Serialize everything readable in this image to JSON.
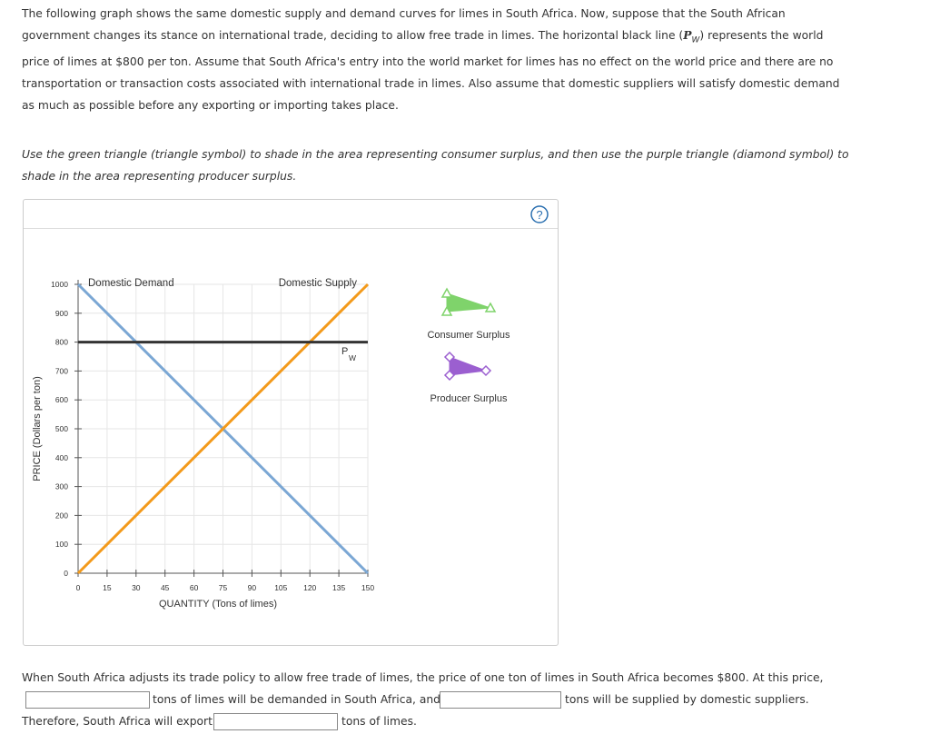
{
  "question": {
    "intro": [
      "The following graph shows the same domestic supply and demand curves for limes in South Africa. Now, suppose that the South African government changes its stance on international trade, deciding to allow free trade in limes. The horizontal black line (",
      "P",
      "W",
      ") represents the world price of limes at $800 per ton. Assume that South Africa's entry into the world market for limes has no effect on the world price and there are no transportation or transaction costs associated with international trade in limes. Also assume that domestic suppliers will satisfy domestic demand as much as possible before any exporting or importing takes place."
    ],
    "instruction": "Use the green triangle (triangle symbol) to shade in the area representing consumer surplus, and then use the purple triangle (diamond symbol) to shade in the area representing producer surplus."
  },
  "help": "?",
  "chart_data": {
    "type": "line",
    "x": [
      0,
      150
    ],
    "series": [
      {
        "name": "Domestic Demand",
        "color": "#7ba7d4",
        "values": [
          1000,
          0
        ]
      },
      {
        "name": "Domestic Supply",
        "color": "#f39a1b",
        "values": [
          0,
          1000
        ]
      },
      {
        "name": "P",
        "name_sub": "W",
        "color": "#333333",
        "values": [
          800,
          800
        ]
      }
    ],
    "xlim": [
      0,
      150
    ],
    "xticks": [
      0,
      15,
      30,
      45,
      60,
      75,
      90,
      105,
      120,
      135,
      150
    ],
    "ylim": [
      0,
      1000
    ],
    "yticks": [
      0,
      100,
      200,
      300,
      400,
      500,
      600,
      700,
      800,
      900,
      1000
    ],
    "xlabel": "QUANTITY (Tons of limes)",
    "ylabel": "PRICE (Dollars per ton)",
    "grid": true
  },
  "tools": [
    {
      "label": "Consumer Surplus",
      "color": "#7fd36b"
    },
    {
      "label": "Producer Surplus",
      "color": "#9b5fd0"
    }
  ],
  "answer": {
    "line1": "When South Africa adjusts its trade policy to allow free trade of limes, the price of one ton of limes in South Africa becomes $800. At this price,",
    "after_box1": "tons of limes will be demanded in South Africa, and",
    "after_box2": "tons will be supplied by domestic suppliers.",
    "line3": "Therefore, South Africa will export",
    "after_box3": "tons of limes."
  }
}
